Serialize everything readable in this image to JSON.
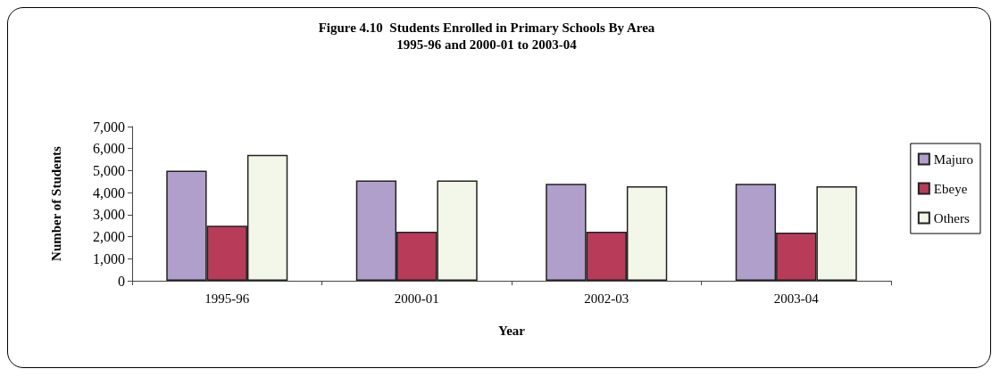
{
  "chart_data": {
    "type": "bar",
    "title": "Figure 4.10  Students Enrolled in Primary Schools By Area",
    "subtitle": "1995-96 and 2000-01 to 2003-04",
    "xlabel": "Year",
    "ylabel": "Number of Students",
    "categories": [
      "1995-96",
      "2000-01",
      "2002-03",
      "2003-04"
    ],
    "series": [
      {
        "name": "Majuro",
        "color": "#b09fcb",
        "values": [
          5000,
          4550,
          4400,
          4400
        ]
      },
      {
        "name": "Ebeye",
        "color": "#b83c5a",
        "values": [
          2500,
          2230,
          2230,
          2180
        ]
      },
      {
        "name": "Others",
        "color": "#f3f7e9",
        "values": [
          5720,
          4550,
          4290,
          4290
        ]
      }
    ],
    "ylim": [
      0,
      7000
    ],
    "yticks": [
      0,
      {
        "value": 1000,
        "label": "1,000"
      },
      {
        "value": 2000,
        "label": "2,000"
      },
      {
        "value": 3000,
        "label": "3,000"
      },
      {
        "value": 4000,
        "label": "4,000"
      },
      {
        "value": 5000,
        "label": "5,000"
      },
      {
        "value": 6000,
        "label": "6,000"
      },
      {
        "value": 7000,
        "label": "7,000"
      }
    ],
    "grid": false,
    "legend": "right"
  }
}
